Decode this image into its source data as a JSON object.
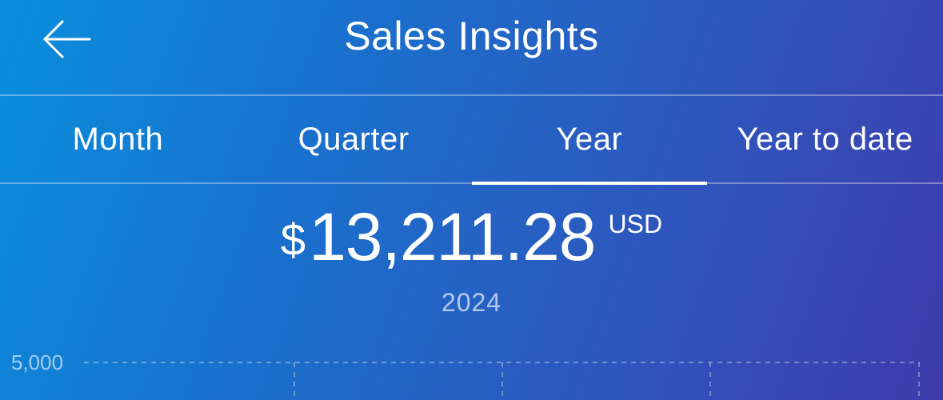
{
  "header": {
    "title": "Sales Insights",
    "back_icon": "arrow-left-icon"
  },
  "tabs": [
    {
      "label": "Month",
      "active": false
    },
    {
      "label": "Quarter",
      "active": false
    },
    {
      "label": "Year",
      "active": true
    },
    {
      "label": "Year to date",
      "active": false
    }
  ],
  "summary": {
    "currency_symbol": "$",
    "amount": "13,211.28",
    "currency_code": "USD",
    "period": "2024"
  },
  "chart": {
    "y_tick_label": "5,000"
  },
  "colors": {
    "gradient_start": "#0a8fdc",
    "gradient_end": "#3e3bac",
    "text": "#ffffff"
  }
}
